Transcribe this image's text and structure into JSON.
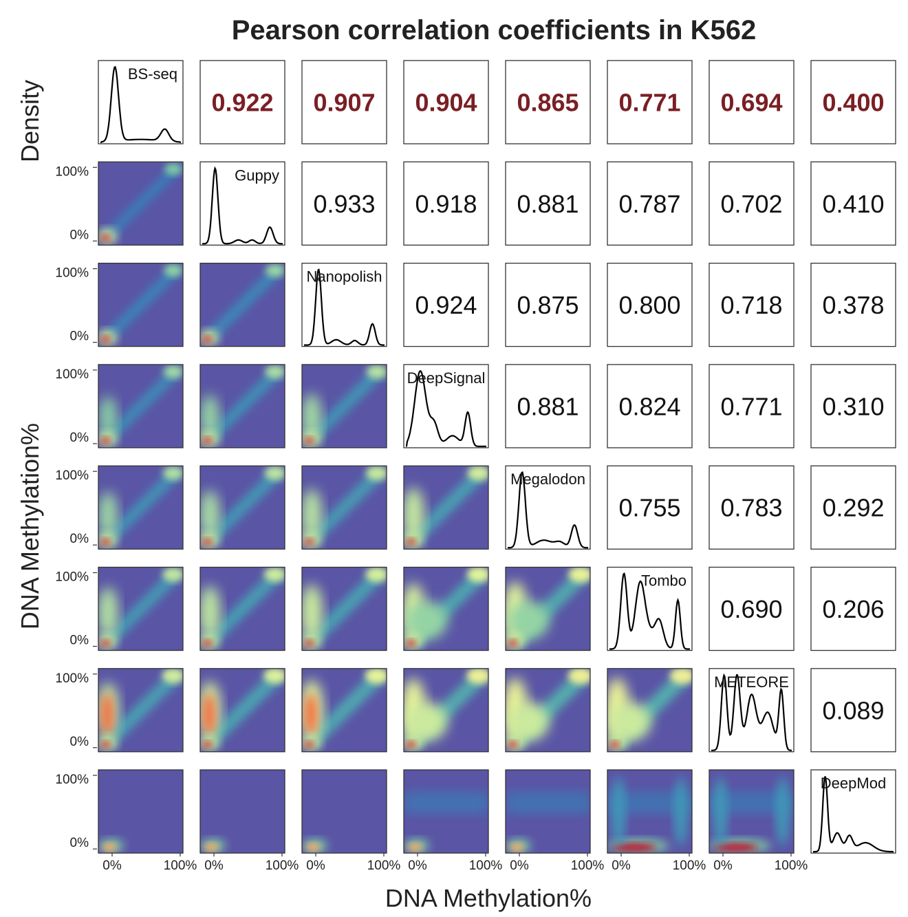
{
  "chart_data": {
    "type": "pairplot",
    "title": "Pearson correlation coefficients in K562",
    "ylabel_top": "Density",
    "ylabel": "DNA Methylation%",
    "xlabel": "DNA Methylation%",
    "x_tick_labels": [
      "0%",
      "100%"
    ],
    "y_tick_labels": [
      "100%",
      "0%"
    ],
    "methods": [
      "BS-seq",
      "Guppy",
      "Nanopolish",
      "DeepSignal",
      "Megalodon",
      "Tombo",
      "METEORE",
      "DeepMod"
    ],
    "correlations": [
      [
        "",
        "0.922",
        "0.907",
        "0.904",
        "0.865",
        "0.771",
        "0.694",
        "0.400"
      ],
      [
        "",
        "",
        "0.933",
        "0.918",
        "0.881",
        "0.787",
        "0.702",
        "0.410"
      ],
      [
        "",
        "",
        "",
        "0.924",
        "0.875",
        "0.800",
        "0.718",
        "0.378"
      ],
      [
        "",
        "",
        "",
        "",
        "0.881",
        "0.824",
        "0.771",
        "0.310"
      ],
      [
        "",
        "",
        "",
        "",
        "",
        "0.755",
        "0.783",
        "0.292"
      ],
      [
        "",
        "",
        "",
        "",
        "",
        "",
        "0.690",
        "0.206"
      ],
      [
        "",
        "",
        "",
        "",
        "",
        "",
        "",
        "0.089"
      ],
      [
        "",
        "",
        "",
        "",
        "",
        "",
        "",
        ""
      ]
    ],
    "colors": {
      "heatmap_low": "#5e4fa2",
      "heatmap_high": "#9e0142",
      "first_row_text": "#7a1f24",
      "text": "#111111"
    }
  }
}
